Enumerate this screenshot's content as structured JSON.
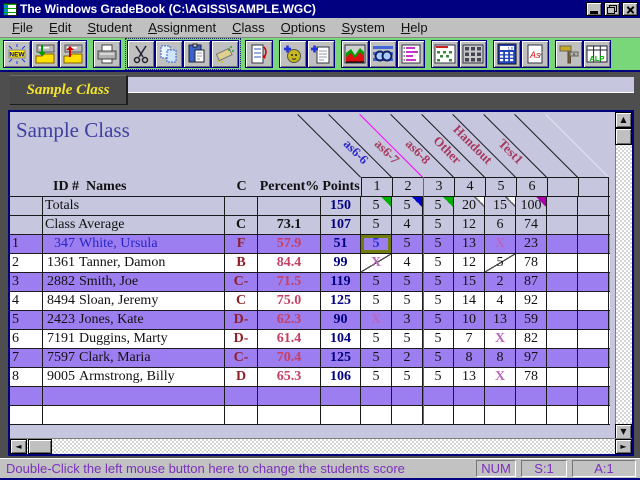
{
  "window": {
    "title": "The Windows GradeBook (C:\\AGISS\\SAMPLE.WGC)"
  },
  "menubar": {
    "items": [
      "File",
      "Edit",
      "Student",
      "Assignment",
      "Class",
      "Options",
      "System",
      "Help"
    ]
  },
  "toolbar": {
    "buttons": [
      "new-file",
      "open-gradebook",
      "save-gradebook",
      "print",
      "cut",
      "copy",
      "paste",
      "clear",
      "schedule",
      "add-student",
      "add-assignment",
      "chart",
      "find-score",
      "options-list",
      "calendar",
      "seating-chart",
      "calculator",
      "grade-scale",
      "signpost",
      "alp-grid"
    ],
    "new_label": "NEW",
    "calc_display": "1.0",
    "grade_scale_label": "As",
    "alp_label": "ALP",
    "signpost_label": "A"
  },
  "tab": {
    "label": "Sample Class"
  },
  "sheet": {
    "title": "Sample Class",
    "assignments": [
      {
        "label": "as6-6",
        "color": "#2a2ac8"
      },
      {
        "label": "as6-7",
        "color": "#a63a5e"
      },
      {
        "label": "as6-8",
        "color": "#a63a5e"
      },
      {
        "label": "Other",
        "color": "#a63a5e"
      },
      {
        "label": "Handout",
        "color": "#a63a5e"
      },
      {
        "label": "Test1",
        "color": "#a63a5e"
      }
    ],
    "magenta_divider_column": 3,
    "columns": {
      "id_header": "ID #",
      "names_header": "Names",
      "c_header": "C",
      "percent_header": "Percent%",
      "points_header": "Points",
      "score_numbers": [
        "1",
        "2",
        "3",
        "4",
        "5",
        "6",
        "",
        ""
      ]
    },
    "totals_row": {
      "label": "Totals",
      "points": "150",
      "scores": [
        "5",
        "5",
        "5",
        "20",
        "15",
        "100"
      ],
      "marks": [
        "green",
        "blue",
        "green",
        "slash",
        "slash",
        "magenta"
      ]
    },
    "average_row": {
      "label": "Class Average",
      "grade": "C",
      "percent": "73.1",
      "points": "107",
      "scores": [
        "5",
        "4",
        "5",
        "12",
        "6",
        "74"
      ]
    },
    "students": [
      {
        "num": "1",
        "id": "347",
        "name": "White, Ursula",
        "grade": "F",
        "percent": "57.9",
        "points": "51",
        "scores": [
          "5",
          "5",
          "5",
          "13",
          "X",
          "23"
        ],
        "selected": true,
        "selected_score_index": 0
      },
      {
        "num": "2",
        "id": "1361",
        "name": "Tanner, Damon",
        "grade": "B",
        "percent": "84.4",
        "points": "99",
        "scores": [
          "X",
          "4",
          "5",
          "12",
          "5",
          "78"
        ],
        "slashed": [
          0,
          4
        ]
      },
      {
        "num": "3",
        "id": "2882",
        "name": "Smith, Joe",
        "grade": "C-",
        "percent": "71.5",
        "points": "119",
        "scores": [
          "5",
          "5",
          "5",
          "15",
          "2",
          "87"
        ]
      },
      {
        "num": "4",
        "id": "8494",
        "name": "Sloan, Jeremy",
        "grade": "C",
        "percent": "75.0",
        "points": "125",
        "scores": [
          "5",
          "5",
          "5",
          "14",
          "4",
          "92"
        ]
      },
      {
        "num": "5",
        "id": "2423",
        "name": "Jones, Kate",
        "grade": "D-",
        "percent": "62.3",
        "points": "90",
        "scores": [
          "X",
          "3",
          "5",
          "10",
          "13",
          "59"
        ]
      },
      {
        "num": "6",
        "id": "7191",
        "name": "Duggins, Marty",
        "grade": "D-",
        "percent": "61.4",
        "points": "104",
        "scores": [
          "5",
          "5",
          "5",
          "7",
          "X",
          "82"
        ]
      },
      {
        "num": "7",
        "id": "7597",
        "name": "Clark, Maria",
        "grade": "C-",
        "percent": "70.4",
        "points": "125",
        "scores": [
          "5",
          "2",
          "5",
          "8",
          "8",
          "97"
        ]
      },
      {
        "num": "8",
        "id": "9005",
        "name": "Armstrong, Billy",
        "grade": "D",
        "percent": "65.3",
        "points": "106",
        "scores": [
          "5",
          "5",
          "5",
          "13",
          "X",
          "78"
        ]
      }
    ]
  },
  "statusbar": {
    "message": "Double-Click the left mouse button here to change the students score",
    "num": "NUM",
    "student": "S:1",
    "assignment": "A:1"
  },
  "colors": {
    "titlebar": "#000080",
    "toolbar_green": "#79d679",
    "content_lavender": "#c6c6de",
    "row_purple": "#9d7ef0",
    "magenta_line": "#ff00ff",
    "grade_color": "#8f1f29",
    "percent_color": "#c54063",
    "points_color": "#000080",
    "x_color": "#bb66bb",
    "selected_cell_border": "#6e7d0e",
    "selected_name_color": "#2626c8",
    "tab_text": "#f2e22a",
    "status_text": "#7b2fbe",
    "mark_green": "#00b000",
    "mark_blue": "#0000cc",
    "mark_magenta": "#aa00aa"
  }
}
